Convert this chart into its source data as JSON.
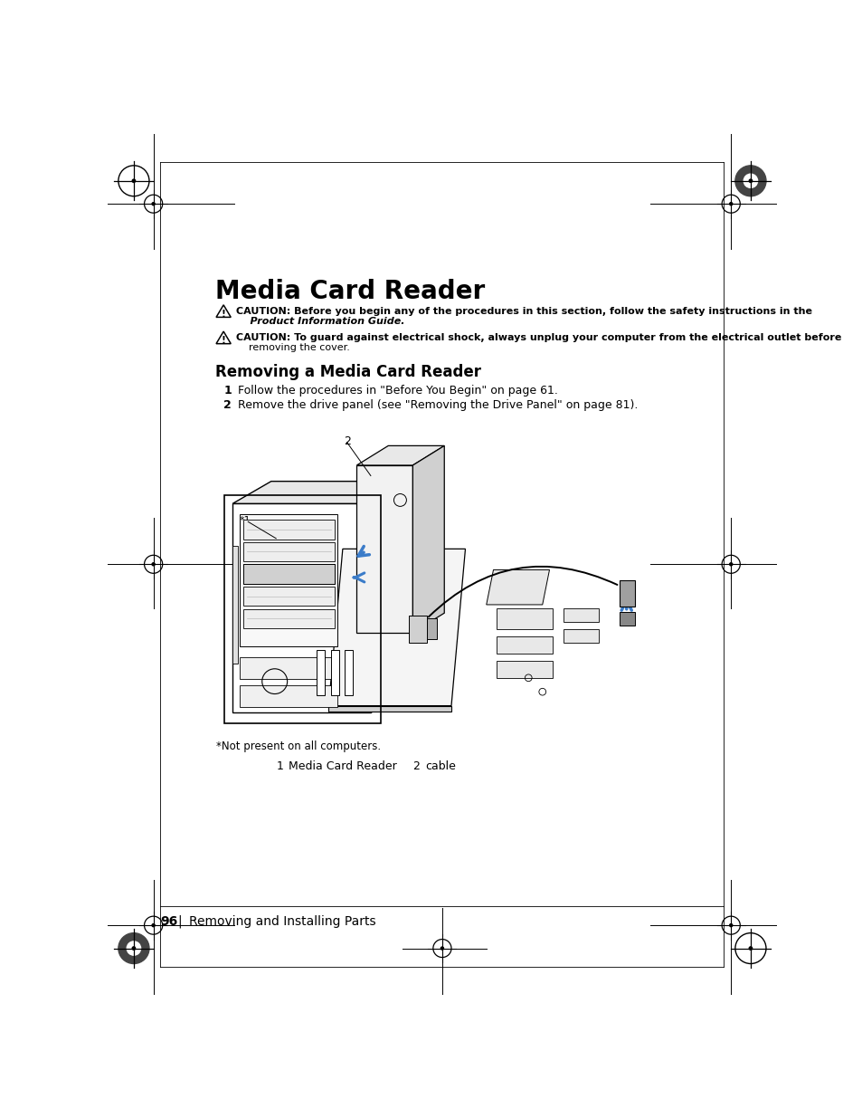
{
  "title": "Media Card Reader",
  "caution1_bold": "CAUTION:",
  "caution1_text": " Before you begin any of the procedures in this section, follow the safety instructions in the",
  "caution1_italic": "Product Information Guide.",
  "caution2_bold": "CAUTION:",
  "caution2_text": " To guard against electrical shock, always unplug your computer from the electrical outlet before",
  "caution2_text2": "removing the cover.",
  "section_title": "Removing a Media Card Reader",
  "step1_num": "1",
  "step1_text": "Follow the procedures in \"Before You Begin\" on page 61.",
  "step2_num": "2",
  "step2_text": "Remove the drive panel (see \"Removing the Drive Panel\" on page 81).",
  "footnote": "*Not present on all computers.",
  "legend1_num": "1",
  "legend1_text": "Media Card Reader",
  "legend2_num": "2",
  "legend2_text": "cable",
  "page_num": "96",
  "page_text": "Removing and Installing Parts",
  "bg_color": "#ffffff",
  "text_color": "#000000",
  "arrow_color": "#3B7CC9",
  "line_color": "#000000",
  "gray_light": "#e8e8e8",
  "gray_med": "#d0d0d0",
  "gray_dark": "#b0b0b0",
  "gray_plug": "#a0a0a0"
}
